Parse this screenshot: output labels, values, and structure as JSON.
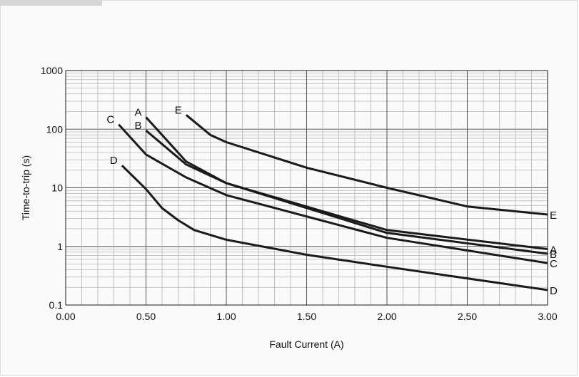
{
  "chart_data": {
    "type": "line",
    "title": "",
    "xlabel": "Fault Current (A)",
    "ylabel": "Time-to-trip (s)",
    "xlim": [
      0,
      3
    ],
    "ylim": [
      0.1,
      1000
    ],
    "yscale": "log",
    "grid": true,
    "x_ticks": [
      "0.00",
      "0.50",
      "1.00",
      "1.50",
      "2.00",
      "2.50",
      "3.00"
    ],
    "y_ticks": [
      "0.1",
      "1",
      "10",
      "100",
      "1000"
    ],
    "series": [
      {
        "name": "A",
        "x": [
          0.5,
          0.75,
          1.0,
          2.0,
          3.0
        ],
        "y": [
          160,
          28,
          12,
          1.9,
          0.9
        ]
      },
      {
        "name": "B",
        "x": [
          0.5,
          0.75,
          1.0,
          2.0,
          3.0
        ],
        "y": [
          95,
          25,
          12,
          1.7,
          0.75
        ]
      },
      {
        "name": "C",
        "x": [
          0.33,
          0.5,
          0.75,
          1.0,
          2.0,
          3.0
        ],
        "y": [
          120,
          37,
          15,
          7.5,
          1.4,
          0.52
        ]
      },
      {
        "name": "D",
        "x": [
          0.35,
          0.5,
          0.6,
          0.7,
          0.8,
          1.0,
          1.5,
          2.0,
          3.0
        ],
        "y": [
          24,
          9.5,
          4.5,
          2.8,
          1.9,
          1.3,
          0.72,
          0.45,
          0.18
        ]
      },
      {
        "name": "E",
        "x": [
          0.75,
          0.9,
          1.0,
          1.5,
          2.0,
          2.5,
          3.0
        ],
        "y": [
          175,
          80,
          60,
          22,
          10,
          4.8,
          3.5
        ]
      }
    ]
  },
  "colors": {
    "curve": "#1a1a1a",
    "grid": "#b3b3b3",
    "frame": "#d9d9d9"
  }
}
